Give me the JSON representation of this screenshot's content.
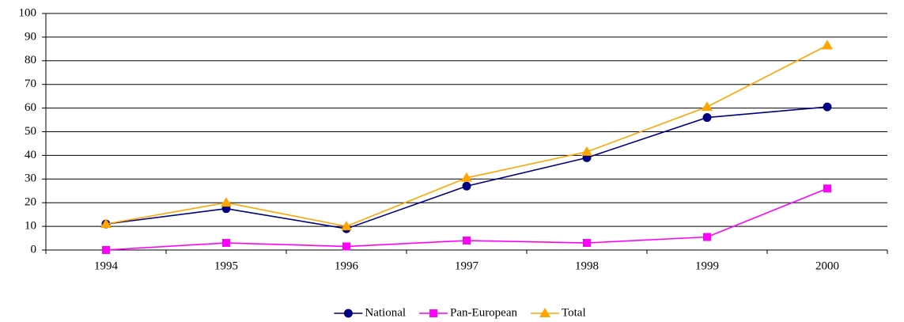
{
  "chart_data": {
    "type": "line",
    "categories": [
      "1994",
      "1995",
      "1996",
      "1997",
      "1998",
      "1999",
      "2000"
    ],
    "series": [
      {
        "name": "National",
        "color": "#000080",
        "marker": "circle",
        "values": [
          11,
          17.5,
          9,
          27,
          39,
          56,
          60.5
        ]
      },
      {
        "name": "Pan-European",
        "color": "#ff00ff",
        "marker": "square",
        "values": [
          0,
          3,
          1.5,
          4,
          3,
          5.5,
          26
        ]
      },
      {
        "name": "Total",
        "color": "#ffa500",
        "marker": "triangle",
        "values": [
          11,
          20,
          10,
          30.5,
          41.5,
          60.5,
          86.5
        ]
      }
    ],
    "ylim": [
      0,
      100
    ],
    "yticks": [
      0,
      10,
      20,
      30,
      40,
      50,
      60,
      70,
      80,
      90,
      100
    ],
    "grid": true,
    "legend": "bottom"
  }
}
